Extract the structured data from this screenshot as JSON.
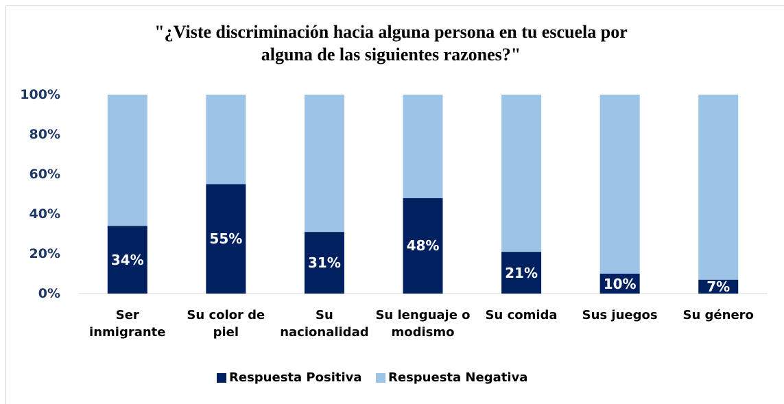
{
  "chart_data": {
    "type": "stacked_bar",
    "title": "\"¿Viste discriminación hacia alguna persona en tu escuela por alguna de las siguientes razones?\"",
    "categories": [
      "Ser inmigrante",
      "Su color de piel",
      "Su nacionalidad",
      "Su lenguaje o modismo",
      "Su comida",
      "Sus juegos",
      "Su género"
    ],
    "series": [
      {
        "name": "Respuesta Positiva",
        "color": "#002060",
        "values": [
          34,
          55,
          31,
          48,
          21,
          10,
          7
        ],
        "value_labels": [
          "34%",
          "55%",
          "31%",
          "48%",
          "21%",
          "10%",
          "7%"
        ]
      },
      {
        "name": "Respuesta Negativa",
        "color": "#9dc3e6",
        "values": [
          66,
          45,
          69,
          52,
          79,
          90,
          93
        ]
      }
    ],
    "ylim": [
      0,
      100
    ],
    "yticks": [
      {
        "value": 0,
        "label": "0%"
      },
      {
        "value": 20,
        "label": "20%"
      },
      {
        "value": 40,
        "label": "40%"
      },
      {
        "value": 60,
        "label": "60%"
      },
      {
        "value": 80,
        "label": "80%"
      },
      {
        "value": 100,
        "label": "100%"
      }
    ],
    "legend": "bottom"
  }
}
